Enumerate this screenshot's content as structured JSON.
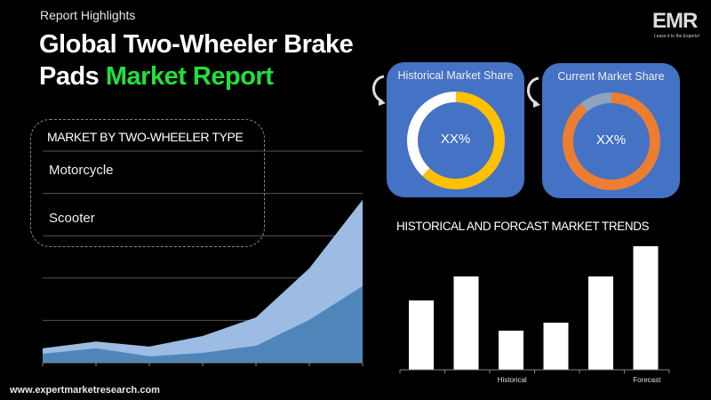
{
  "header": {
    "kicker": "Report Highlights",
    "title_part1": "Global Two-Wheeler Brake",
    "title_part2": "Pads ",
    "title_highlight": "Market Report",
    "logo_text": "EMR",
    "logo_tagline": "Leave it to the Experts!"
  },
  "segments": {
    "heading": "MARKET BY TWO-WHEELER TYPE",
    "items": [
      {
        "label": "Motorcycle"
      },
      {
        "label": "Scooter"
      }
    ]
  },
  "cards": [
    {
      "title": "Historical Market Share",
      "value": "XX%",
      "ring": [
        {
          "share": 0.62,
          "color": "#ffc000"
        },
        {
          "share": 0.38,
          "color": "#ffffff"
        }
      ]
    },
    {
      "title": "Current Market Share",
      "value": "XX%",
      "ring": [
        {
          "share": 0.89,
          "color": "#ed7d31"
        },
        {
          "share": 0.11,
          "color": "#8fa3be"
        }
      ]
    }
  ],
  "colors": {
    "accent_green": "#22e03a",
    "card_bg": "#4472c4",
    "area_light": "#9dbce3",
    "area_dark": "#4f86ba"
  },
  "chart_data": [
    {
      "type": "area",
      "stacked": false,
      "x": [
        1,
        2,
        3,
        4,
        5,
        6,
        7
      ],
      "ylim": [
        0,
        5
      ],
      "grid": true,
      "series": [
        {
          "values": [
            0.34,
            0.5,
            0.38,
            0.63,
            1.07,
            2.23,
            3.85
          ],
          "color": "#9dbce3"
        },
        {
          "values": [
            0.21,
            0.34,
            0.15,
            0.23,
            0.4,
            1.01,
            1.81
          ],
          "color": "#4f86ba"
        }
      ]
    },
    {
      "type": "bar",
      "title": "HISTORICAL AND FORCAST MARKET TRENDS",
      "categories": [
        "",
        "",
        "Historical",
        "",
        "",
        "Forecast"
      ],
      "values": [
        78,
        105,
        44,
        53,
        105,
        139
      ],
      "ylim": [
        0,
        150
      ],
      "grid": false,
      "color": "#ffffff"
    }
  ],
  "footer": {
    "url": "www.expertmarketresearch.com"
  }
}
